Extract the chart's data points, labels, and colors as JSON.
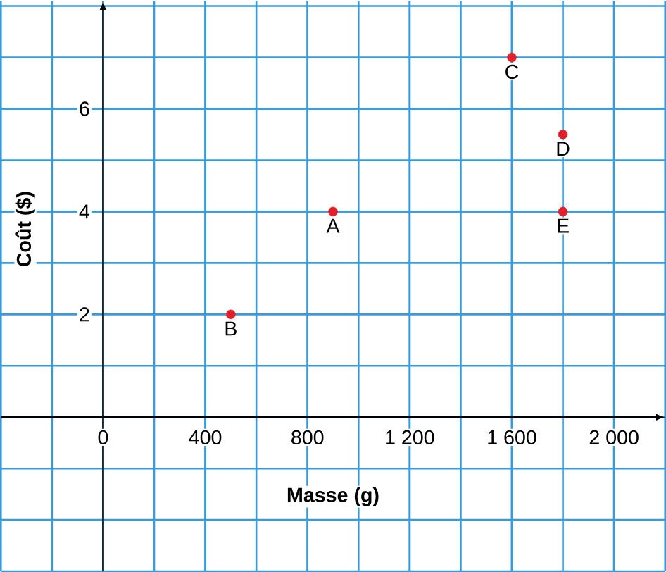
{
  "chart_data": {
    "type": "scatter",
    "xlabel": "Masse (g)",
    "ylabel": "Coût ($)",
    "x": [
      500,
      900,
      1600,
      1800,
      1800
    ],
    "values": [
      2,
      4,
      7,
      5.5,
      4
    ],
    "color": "#e0202a",
    "marker": "circle",
    "xlim": [
      -400,
      2200
    ],
    "ylim": [
      -3,
      8.1
    ],
    "xticks": [
      {
        "value": 0,
        "label": "0"
      },
      400,
      800,
      {
        "value": 1200,
        "label": "1 200"
      },
      {
        "value": 1600,
        "label": "1 600"
      },
      {
        "value": 2000,
        "label": "2 000"
      }
    ],
    "yticks": [
      2,
      4,
      6
    ],
    "grid": true,
    "annotations": [
      {
        "text": "B",
        "x": 500,
        "y": 2
      },
      {
        "text": "A",
        "x": 900,
        "y": 4
      },
      {
        "text": "C",
        "x": 1600,
        "y": 7
      },
      {
        "text": "D",
        "x": 1800,
        "y": 5.5
      },
      {
        "text": "E",
        "x": 1800,
        "y": 4
      }
    ]
  }
}
